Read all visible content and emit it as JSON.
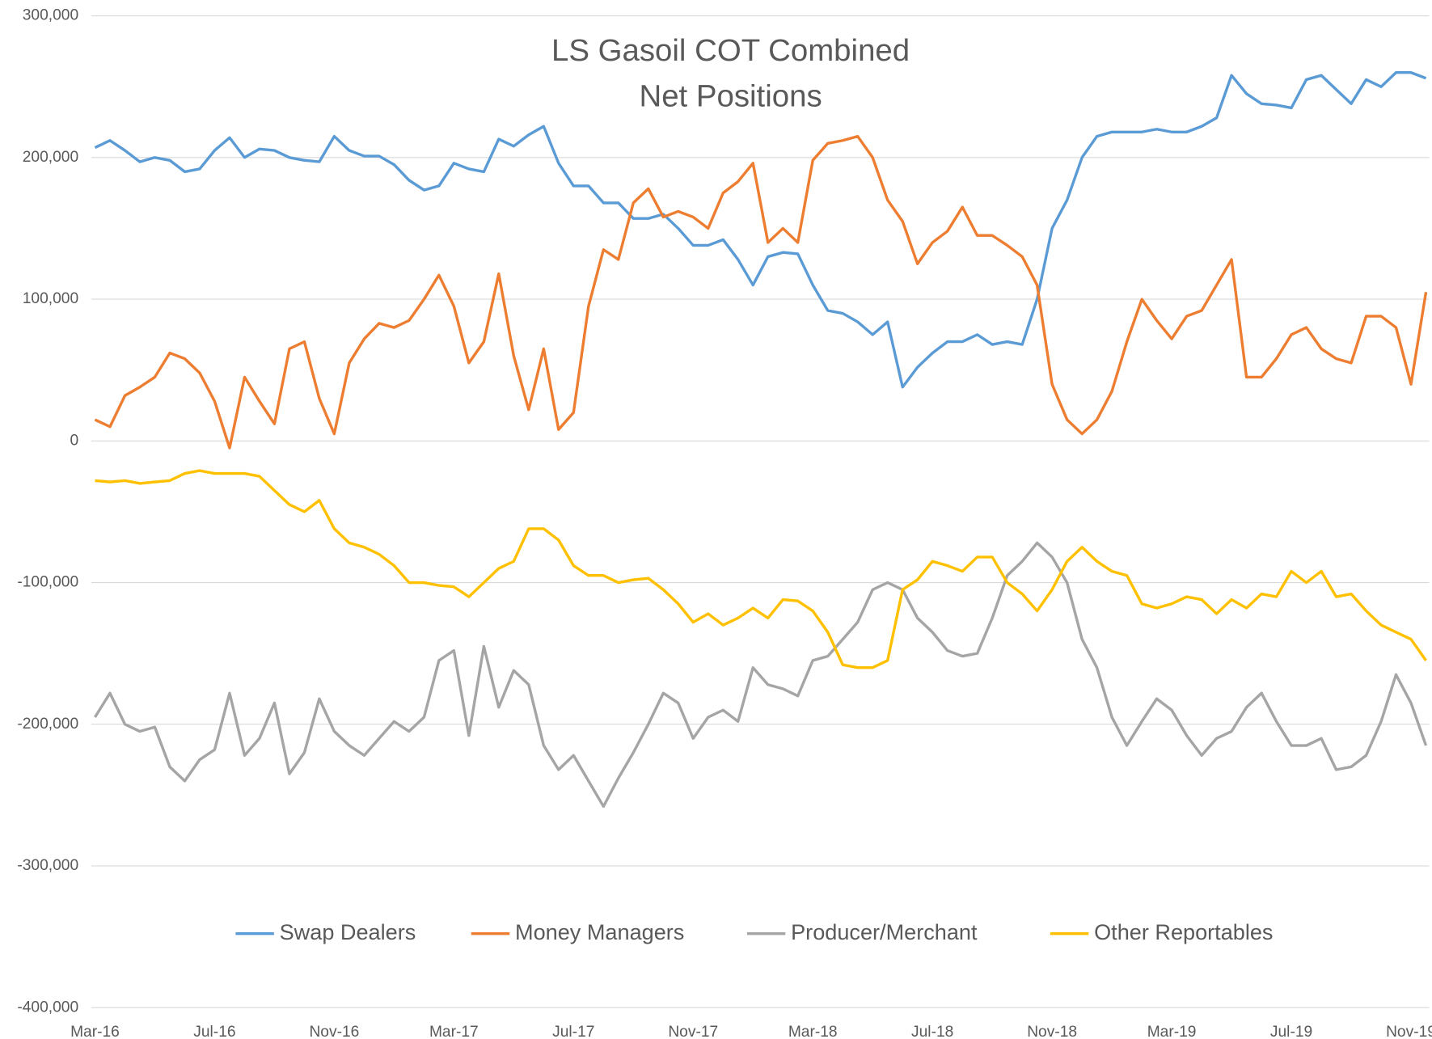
{
  "chart_data": {
    "type": "line",
    "title": [
      "LS Gasoil COT Combined",
      "Net Positions"
    ],
    "categories": [
      "Mar-16",
      null,
      null,
      null,
      null,
      null,
      null,
      null,
      "Jul-16",
      null,
      null,
      null,
      null,
      null,
      null,
      null,
      "Nov-16",
      null,
      null,
      null,
      null,
      null,
      null,
      null,
      "Mar-17",
      null,
      null,
      null,
      null,
      null,
      null,
      null,
      "Jul-17",
      null,
      null,
      null,
      null,
      null,
      null,
      null,
      "Nov-17",
      null,
      null,
      null,
      null,
      null,
      null,
      null,
      "Mar-18",
      null,
      null,
      null,
      null,
      null,
      null,
      null,
      "Jul-18",
      null,
      null,
      null,
      null,
      null,
      null,
      null,
      "Nov-18",
      null,
      null,
      null,
      null,
      null,
      null,
      null,
      "Mar-19",
      null,
      null,
      null,
      null,
      null,
      null,
      null,
      "Jul-19",
      null,
      null,
      null,
      null,
      null,
      null,
      null,
      "Nov-19",
      null
    ],
    "ylim": [
      -400000,
      300000
    ],
    "yticks": [
      {
        "value": -400000,
        "label": "-400,000"
      },
      {
        "value": -300000,
        "label": "-300,000"
      },
      {
        "value": -200000,
        "label": "-200,000"
      },
      {
        "value": -100000,
        "label": "-100,000"
      },
      0,
      {
        "value": 100000,
        "label": "100,000"
      },
      {
        "value": 200000,
        "label": "200,000"
      },
      {
        "value": 300000,
        "label": "300,000"
      }
    ],
    "grid": true,
    "series": [
      {
        "name": "Swap Dealers",
        "color": "#5b9bd5",
        "values": [
          207000,
          212000,
          205000,
          197000,
          200000,
          198000,
          190000,
          192000,
          205000,
          214000,
          200000,
          206000,
          205000,
          200000,
          198000,
          197000,
          215000,
          205000,
          201000,
          201000,
          195000,
          184000,
          177000,
          180000,
          196000,
          192000,
          190000,
          213000,
          208000,
          216000,
          222000,
          196000,
          180000,
          180000,
          168000,
          168000,
          157000,
          157000,
          160000,
          150000,
          138000,
          138000,
          142000,
          128000,
          110000,
          130000,
          133000,
          132000,
          110000,
          92000,
          90000,
          84000,
          75000,
          84000,
          38000,
          52000,
          62000,
          70000,
          70000,
          75000,
          68000,
          70000,
          68000,
          100000,
          150000,
          170000,
          200000,
          215000,
          218000,
          218000,
          218000,
          220000,
          218000,
          218000,
          222000,
          228000,
          258000,
          245000,
          238000,
          237000,
          235000,
          255000,
          258000,
          248000,
          238000,
          255000,
          250000,
          260000,
          260000,
          256000
        ]
      },
      {
        "name": "Money Managers",
        "color": "#ed7d31",
        "values": [
          15000,
          10000,
          32000,
          38000,
          45000,
          62000,
          58000,
          48000,
          28000,
          -5000,
          45000,
          28000,
          12000,
          65000,
          70000,
          30000,
          5000,
          55000,
          72000,
          83000,
          80000,
          85000,
          100000,
          117000,
          95000,
          55000,
          70000,
          118000,
          60000,
          22000,
          65000,
          8000,
          20000,
          95000,
          135000,
          128000,
          168000,
          178000,
          158000,
          162000,
          158000,
          150000,
          175000,
          183000,
          196000,
          140000,
          150000,
          140000,
          198000,
          210000,
          212000,
          215000,
          200000,
          170000,
          155000,
          125000,
          140000,
          148000,
          165000,
          145000,
          145000,
          138000,
          130000,
          110000,
          40000,
          15000,
          5000,
          15000,
          35000,
          70000,
          100000,
          85000,
          72000,
          88000,
          92000,
          110000,
          128000,
          45000,
          45000,
          58000,
          75000,
          80000,
          65000,
          58000,
          55000,
          88000,
          88000,
          80000,
          40000,
          105000
        ]
      },
      {
        "name": "Producer/Merchant",
        "color": "#a5a5a5",
        "values": [
          -195000,
          -178000,
          -200000,
          -205000,
          -202000,
          -230000,
          -240000,
          -225000,
          -218000,
          -178000,
          -222000,
          -210000,
          -185000,
          -235000,
          -220000,
          -182000,
          -205000,
          -215000,
          -222000,
          -210000,
          -198000,
          -205000,
          -195000,
          -155000,
          -148000,
          -208000,
          -145000,
          -188000,
          -162000,
          -172000,
          -215000,
          -232000,
          -222000,
          -240000,
          -258000,
          -238000,
          -220000,
          -200000,
          -178000,
          -185000,
          -210000,
          -195000,
          -190000,
          -198000,
          -160000,
          -172000,
          -175000,
          -180000,
          -155000,
          -152000,
          -140000,
          -128000,
          -105000,
          -100000,
          -105000,
          -125000,
          -135000,
          -148000,
          -152000,
          -150000,
          -125000,
          -95000,
          -85000,
          -72000,
          -82000,
          -100000,
          -140000,
          -160000,
          -195000,
          -215000,
          -198000,
          -182000,
          -190000,
          -208000,
          -222000,
          -210000,
          -205000,
          -188000,
          -178000,
          -198000,
          -215000,
          -215000,
          -210000,
          -232000,
          -230000,
          -222000,
          -198000,
          -165000,
          -185000,
          -215000
        ]
      },
      {
        "name": "Other Reportables",
        "color": "#ffc000",
        "values": [
          -28000,
          -29000,
          -28000,
          -30000,
          -29000,
          -28000,
          -23000,
          -21000,
          -23000,
          -23000,
          -23000,
          -25000,
          -35000,
          -45000,
          -50000,
          -42000,
          -62000,
          -72000,
          -75000,
          -80000,
          -88000,
          -100000,
          -100000,
          -102000,
          -103000,
          -110000,
          -100000,
          -90000,
          -85000,
          -62000,
          -62000,
          -70000,
          -88000,
          -95000,
          -95000,
          -100000,
          -98000,
          -97000,
          -105000,
          -115000,
          -128000,
          -122000,
          -130000,
          -125000,
          -118000,
          -125000,
          -112000,
          -113000,
          -120000,
          -135000,
          -158000,
          -160000,
          -160000,
          -155000,
          -105000,
          -98000,
          -85000,
          -88000,
          -92000,
          -82000,
          -82000,
          -100000,
          -108000,
          -120000,
          -105000,
          -85000,
          -75000,
          -85000,
          -92000,
          -95000,
          -115000,
          -118000,
          -115000,
          -110000,
          -112000,
          -122000,
          -112000,
          -118000,
          -108000,
          -110000,
          -92000,
          -100000,
          -92000,
          -110000,
          -108000,
          -120000,
          -130000,
          -135000,
          -140000,
          -155000
        ]
      }
    ]
  }
}
